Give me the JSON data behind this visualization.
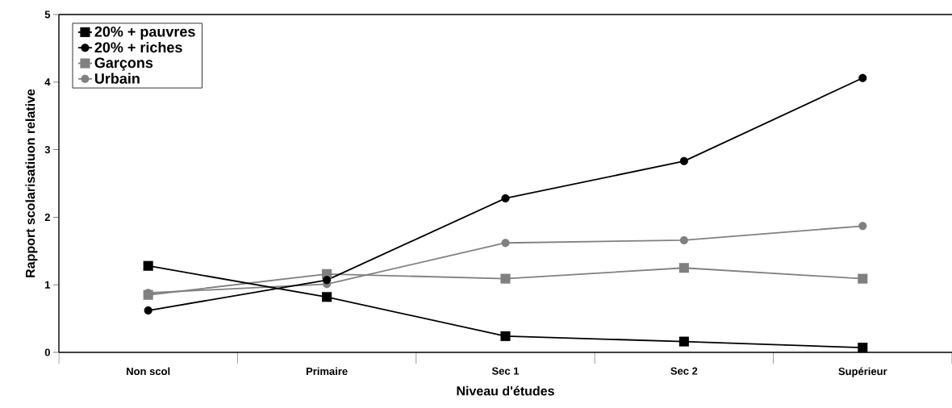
{
  "chart_data": {
    "type": "line",
    "xlabel": "Niveau d'études",
    "ylabel": "Rapport scolarisatiuon relative",
    "categories": [
      "Non scol",
      "Primaire",
      "Sec 1",
      "Sec 2",
      "Supérieur"
    ],
    "series": [
      {
        "name": "20% + pauvres",
        "color": "#000000",
        "marker": "square",
        "values": [
          1.28,
          0.82,
          0.24,
          0.16,
          0.07
        ]
      },
      {
        "name": "20% + riches",
        "color": "#000000",
        "marker": "circle",
        "values": [
          0.62,
          1.07,
          2.28,
          2.83,
          4.06
        ]
      },
      {
        "name": "Garçons",
        "color": "#808080",
        "marker": "square",
        "values": [
          0.85,
          1.16,
          1.09,
          1.25,
          1.09
        ]
      },
      {
        "name": "Urbain",
        "color": "#808080",
        "marker": "circle",
        "values": [
          0.88,
          1.01,
          1.62,
          1.66,
          1.87
        ]
      }
    ],
    "ylim": [
      0,
      5
    ],
    "yticks": [
      0,
      1,
      2,
      3,
      4,
      5
    ],
    "grid": false,
    "legend": "top left",
    "line_style": "solid"
  }
}
